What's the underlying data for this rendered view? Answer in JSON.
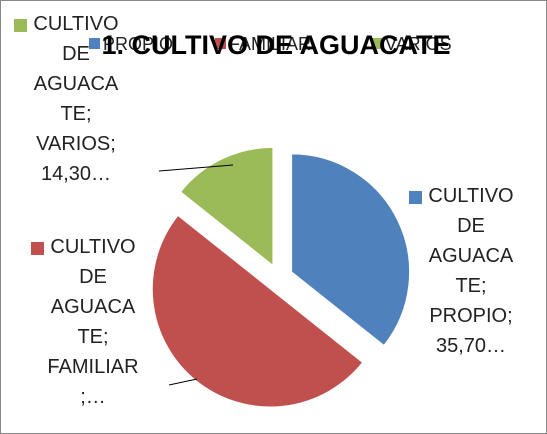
{
  "chart_data": {
    "type": "pie",
    "title": "1. CULTIVO DE AGUACATE",
    "categories": [
      "PROPIO",
      "FAMILIAR",
      "VARIOS"
    ],
    "values": [
      35.7,
      50,
      14.3
    ],
    "value_labels": [
      "CULTIVO DE AGUACATE; PROPIO; 35,70…",
      "CULTIVO DE AGUACATE; FAMILIAR;…",
      "CULTIVO DE AGUACATE; VARIOS; 14,30…"
    ],
    "colors": [
      "#4f81bd",
      "#c0504d",
      "#9bbb59"
    ],
    "legend": "top"
  }
}
